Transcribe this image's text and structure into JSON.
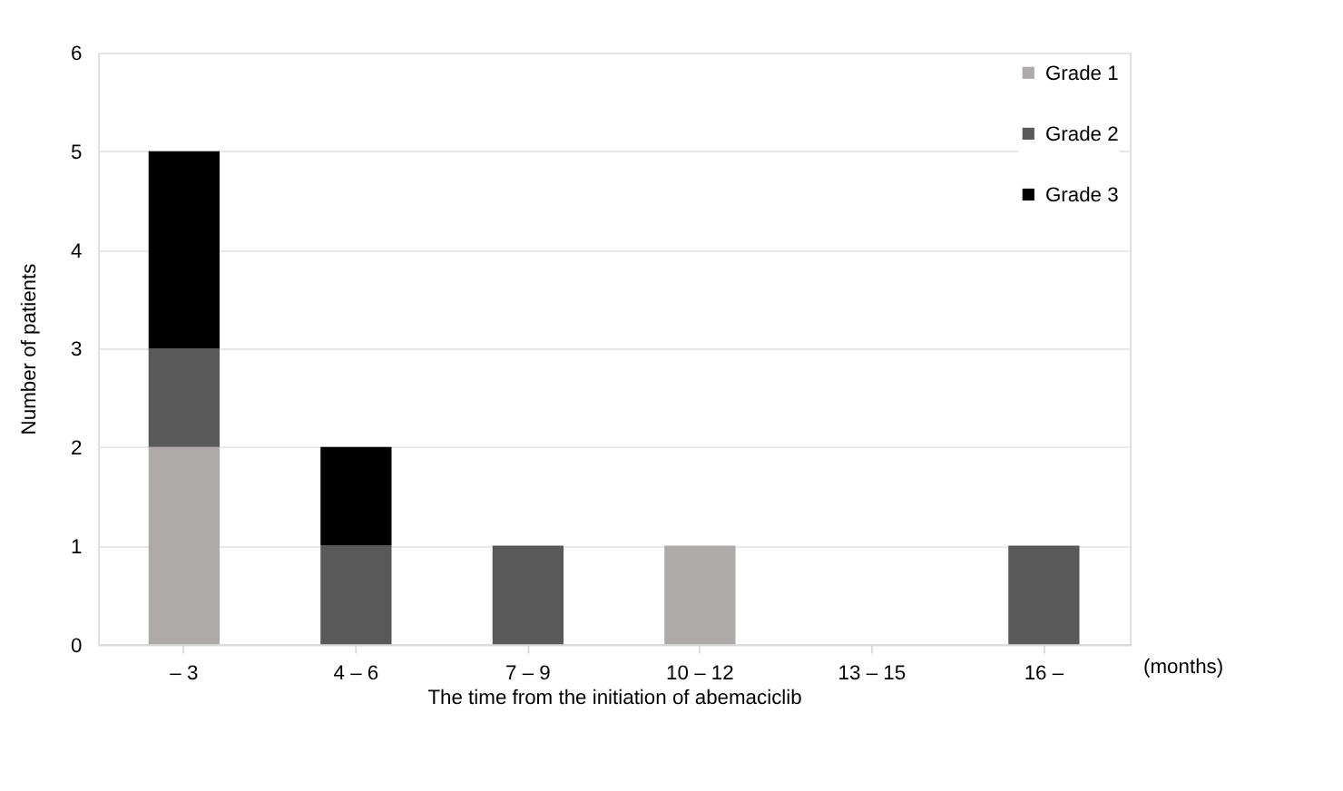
{
  "chart_data": {
    "type": "bar",
    "stacked": true,
    "xlabel": "The time from the initiation of abemaciclib",
    "ylabel": "Number of patients",
    "categories": [
      "– 3",
      "4 – 6",
      "7 – 9",
      "10 – 12",
      "13 – 15",
      "16 –"
    ],
    "series": [
      {
        "name": "Grade 1",
        "color": "#aeaaaa",
        "values": [
          2,
          0,
          0,
          1,
          0,
          0
        ]
      },
      {
        "name": "Grade 2",
        "color": "#595959",
        "values": [
          1,
          1,
          1,
          0,
          0,
          1
        ]
      },
      {
        "name": "Grade 3",
        "color": "#000000",
        "values": [
          2,
          1,
          0,
          0,
          0,
          0
        ]
      }
    ],
    "ylim": [
      0,
      6
    ],
    "yticks": [
      0,
      1,
      2,
      3,
      4,
      5,
      6
    ],
    "grid": "y",
    "legend": "top right",
    "annotations": [
      "(months)"
    ]
  }
}
